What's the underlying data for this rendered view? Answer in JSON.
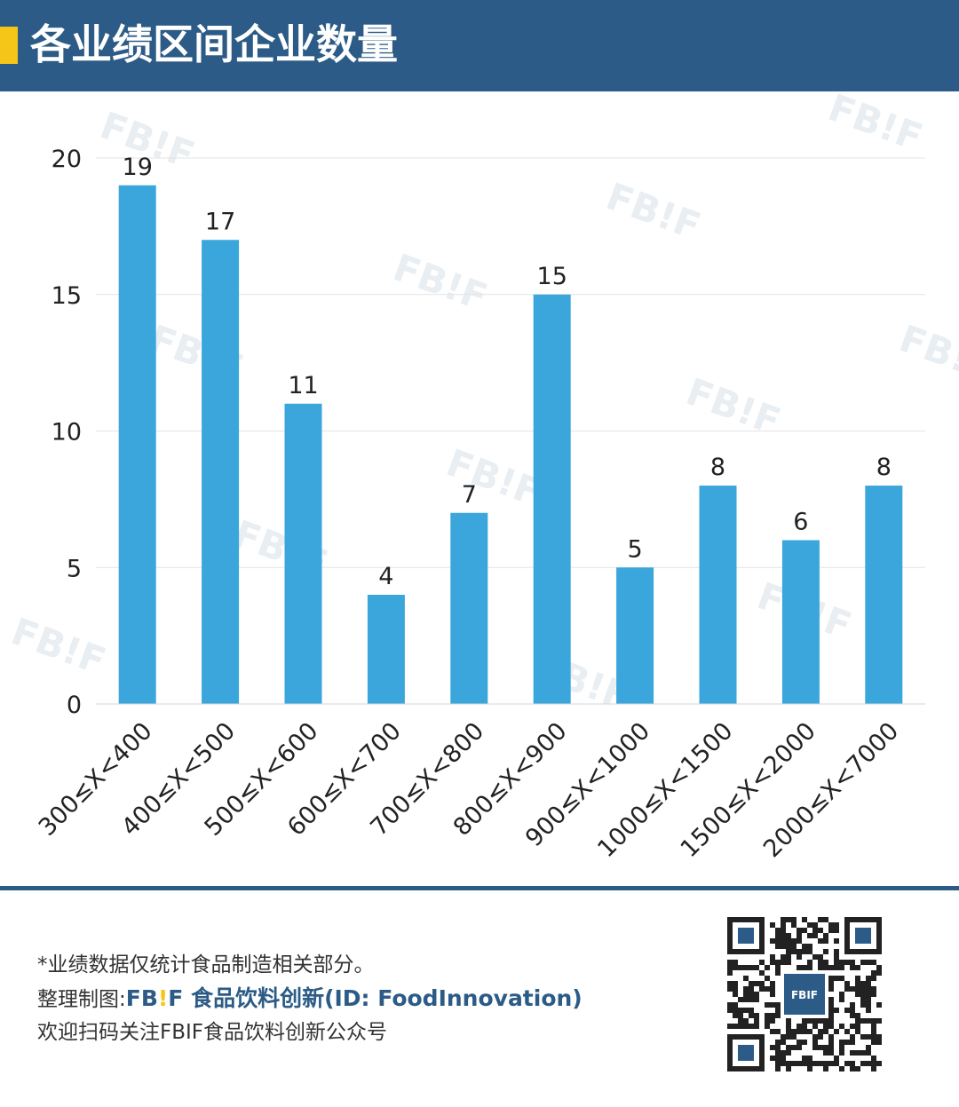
{
  "header": {
    "title": "各业绩区间企业数量"
  },
  "chart_data": {
    "type": "bar",
    "title": "",
    "xlabel": "",
    "ylabel": "",
    "categories": [
      "300≤X<400",
      "400≤X<500",
      "500≤X<600",
      "600≤X<700",
      "700≤X<800",
      "800≤X<900",
      "900≤X<1000",
      "1000≤X<1500",
      "1500≤X<2000",
      "2000≤X<7000"
    ],
    "values": [
      19,
      17,
      11,
      4,
      7,
      15,
      5,
      8,
      6,
      8
    ],
    "ylim": [
      0,
      20
    ],
    "yticks": [
      0,
      5,
      10,
      15,
      20
    ],
    "grid": true,
    "data_labels": true,
    "bar_color": "#3aa6dc",
    "grid_color": "#e3e3e3",
    "watermark_text": "FB!F"
  },
  "footer": {
    "note": "*业绩数据仅统计食品制造相关部分。",
    "credit_prefix": "整理制图:",
    "brand_fb": "FB",
    "brand_excl": "!",
    "brand_f": "F",
    "brand_cn": " 食品饮料创新(ID: FoodInnovation)",
    "follow": "欢迎扫码关注FBIF食品饮料创新公众号",
    "qr_center_label": "FBIF"
  },
  "colors": {
    "header_bg": "#2b5b86",
    "accent": "#f5c518",
    "bar": "#3aa6dc"
  }
}
